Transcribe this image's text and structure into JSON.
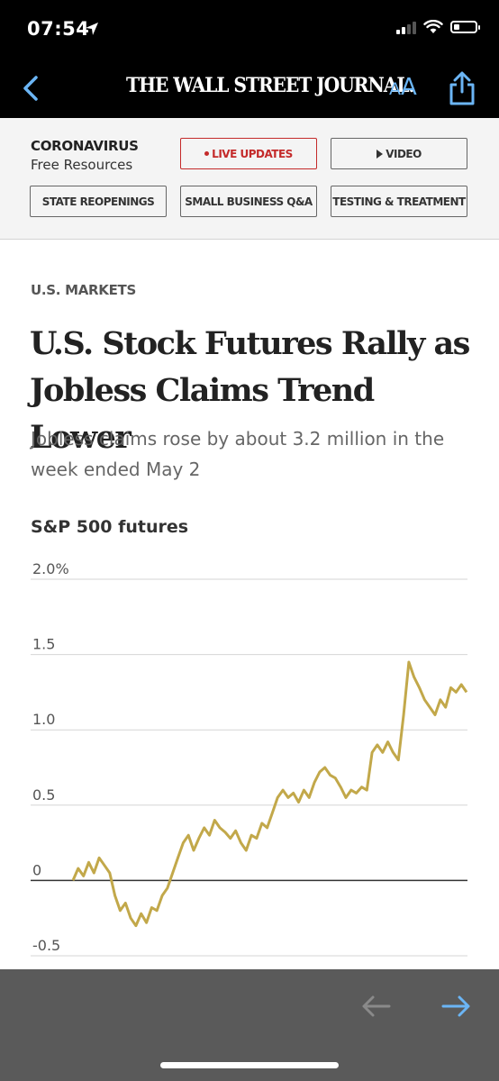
{
  "status_bar": {
    "time": "07:54"
  },
  "nav": {
    "masthead": "THE WALL STREET JOURNAL.",
    "font_small": "A",
    "font_large": "A"
  },
  "corona": {
    "title": "CORONAVIRUS",
    "subtitle": "Free Resources",
    "buttons": {
      "live": "LIVE UPDATES",
      "video": "VIDEO",
      "state": "STATE REOPENINGS",
      "smallbiz": "SMALL BUSINESS Q&A",
      "testing": "TESTING & TREATMENT"
    }
  },
  "article": {
    "section": "U.S. MARKETS",
    "headline": "U.S. Stock Futures Rally as Jobless Claims Trend Lower",
    "dek": "Jobless claims rose by about 3.2 million in the week ended May 2"
  },
  "chart_data": {
    "type": "line",
    "title": "S&P 500 futures",
    "y_ticks": [
      "2.0%",
      "1.5",
      "1.0",
      "0.5",
      "0",
      "-0.5"
    ],
    "ylim": [
      -0.5,
      2.0
    ],
    "grid": true,
    "color": "#c2a84a",
    "series": [
      {
        "values": [
          0.0,
          0.08,
          0.03,
          0.12,
          0.05,
          0.15,
          0.1,
          0.05,
          -0.1,
          -0.2,
          -0.15,
          -0.25,
          -0.3,
          -0.22,
          -0.28,
          -0.18,
          -0.2,
          -0.1,
          -0.05,
          0.05,
          0.15,
          0.25,
          0.3,
          0.2,
          0.28,
          0.35,
          0.3,
          0.4,
          0.35,
          0.32,
          0.28,
          0.33,
          0.25,
          0.2,
          0.3,
          0.28,
          0.38,
          0.35,
          0.45,
          0.55,
          0.6,
          0.55,
          0.58,
          0.52,
          0.6,
          0.55,
          0.65,
          0.72,
          0.75,
          0.7,
          0.68,
          0.62,
          0.55,
          0.6,
          0.58,
          0.62,
          0.6,
          0.85,
          0.9,
          0.85,
          0.92,
          0.85,
          0.8,
          1.1,
          1.45,
          1.35,
          1.28,
          1.2,
          1.15,
          1.1,
          1.2,
          1.15,
          1.28,
          1.25,
          1.3,
          1.25
        ]
      }
    ]
  }
}
